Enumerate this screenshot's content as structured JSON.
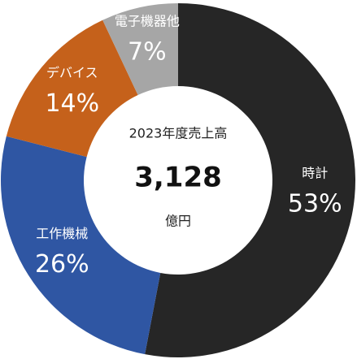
{
  "chart_data": {
    "type": "donut",
    "center_title": "2023年度売上高",
    "center_total": "3,128",
    "center_unit": "億円",
    "categories": [
      "時計",
      "工作機械",
      "デバイス",
      "電子機器他"
    ],
    "values": [
      53,
      26,
      14,
      7
    ],
    "value_labels": [
      "53%",
      "26%",
      "14%",
      "7%"
    ],
    "colors": [
      "#262626",
      "#2f56a3",
      "#c5611b",
      "#a6a6a6"
    ]
  }
}
